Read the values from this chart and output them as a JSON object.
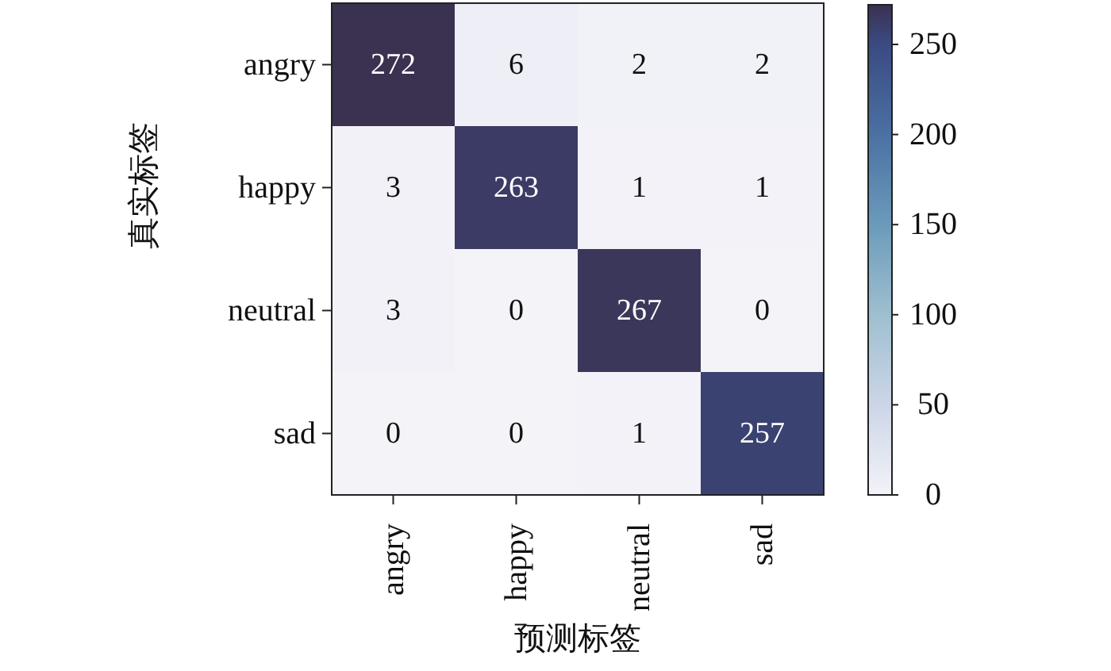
{
  "chart_data": {
    "type": "heatmap",
    "xlabel": "预测标签",
    "ylabel": "真实标签",
    "categories": [
      "angry",
      "happy",
      "neutral",
      "sad"
    ],
    "y_categories": [
      "angry",
      "happy",
      "neutral",
      "sad"
    ],
    "cells": [
      [
        272,
        6,
        2,
        2
      ],
      [
        3,
        263,
        1,
        1
      ],
      [
        3,
        0,
        267,
        0
      ],
      [
        0,
        0,
        1,
        257
      ]
    ],
    "clim": [
      0,
      272
    ],
    "cticks": [
      0,
      50,
      100,
      150,
      200,
      250
    ],
    "data_labels": true
  }
}
